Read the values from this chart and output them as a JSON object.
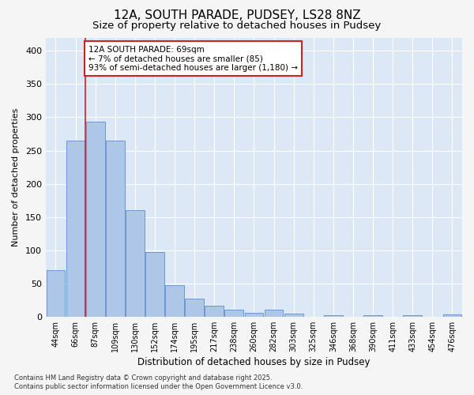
{
  "title": "12A, SOUTH PARADE, PUDSEY, LS28 8NZ",
  "subtitle": "Size of property relative to detached houses in Pudsey",
  "xlabel": "Distribution of detached houses by size in Pudsey",
  "ylabel": "Number of detached properties",
  "categories": [
    "44sqm",
    "66sqm",
    "87sqm",
    "109sqm",
    "130sqm",
    "152sqm",
    "174sqm",
    "195sqm",
    "217sqm",
    "238sqm",
    "260sqm",
    "282sqm",
    "303sqm",
    "325sqm",
    "346sqm",
    "368sqm",
    "390sqm",
    "411sqm",
    "433sqm",
    "454sqm",
    "476sqm"
  ],
  "values": [
    70,
    265,
    293,
    265,
    160,
    97,
    47,
    27,
    17,
    10,
    6,
    10,
    4,
    0,
    2,
    0,
    2,
    0,
    2,
    0,
    3
  ],
  "bar_color": "#aec6e8",
  "bar_edge_color": "#5b8fc9",
  "fig_bg_color": "#f5f5f5",
  "axes_bg_color": "#dce8f5",
  "grid_color": "#ffffff",
  "annotation_text": "12A SOUTH PARADE: 69sqm\n← 7% of detached houses are smaller (85)\n93% of semi-detached houses are larger (1,180) →",
  "annotation_box_facecolor": "#ffffff",
  "annotation_box_edgecolor": "#cc2222",
  "vline_x_index": 1,
  "vline_color": "#cc2222",
  "ylim": [
    0,
    420
  ],
  "yticks": [
    0,
    50,
    100,
    150,
    200,
    250,
    300,
    350,
    400
  ],
  "footnote": "Contains HM Land Registry data © Crown copyright and database right 2025.\nContains public sector information licensed under the Open Government Licence v3.0.",
  "title_fontsize": 11,
  "subtitle_fontsize": 9.5,
  "xlabel_fontsize": 8.5,
  "ylabel_fontsize": 8,
  "ytick_fontsize": 8,
  "xtick_fontsize": 7,
  "annotation_fontsize": 7.5,
  "footnote_fontsize": 6
}
